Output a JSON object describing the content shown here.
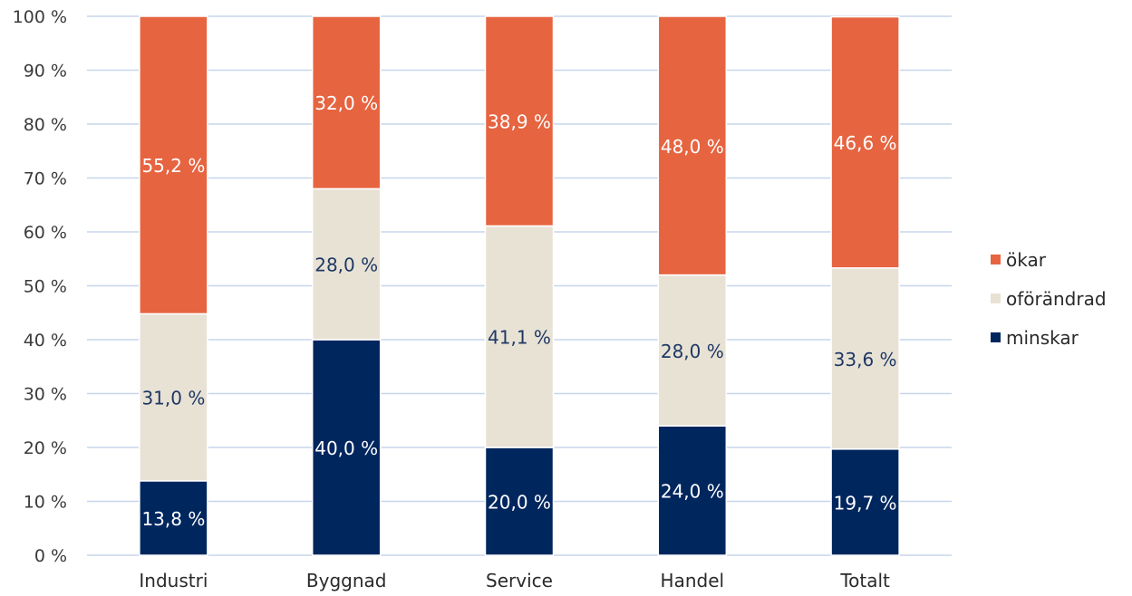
{
  "chart_data": {
    "type": "bar",
    "stacked": true,
    "categories": [
      "Industri",
      "Byggnad",
      "Service",
      "Handel",
      "Totalt"
    ],
    "series": [
      {
        "name": "minskar",
        "values": [
          13.8,
          40.0,
          20.0,
          24.0,
          19.7
        ],
        "labels": [
          "13,8 %",
          "40,0 %",
          "20,0 %",
          "24,0 %",
          "19,7 %"
        ],
        "color": "#00265e",
        "label_color": "#ffffff"
      },
      {
        "name": "oförändrad",
        "values": [
          31.0,
          28.0,
          41.1,
          28.0,
          33.6
        ],
        "labels": [
          "31,0 %",
          "28,0 %",
          "41,1 %",
          "28,0 %",
          "33,6 %"
        ],
        "color": "#e8e2d5",
        "label_color": "#1f3864"
      },
      {
        "name": "ökar",
        "values": [
          55.2,
          32.0,
          38.9,
          48.0,
          46.6
        ],
        "labels": [
          "55,2 %",
          "32,0 %",
          "38,9 %",
          "48,0 %",
          "46,6 %"
        ],
        "color": "#e66440",
        "label_color": "#ffffff"
      }
    ],
    "ylim": [
      0,
      100
    ],
    "yticks": [
      "0 %",
      "10 %",
      "20 %",
      "30 %",
      "40 %",
      "50 %",
      "60 %",
      "70 %",
      "80 %",
      "90 %",
      "100 %"
    ],
    "grid": true,
    "grid_color": "#c7d6ec",
    "legend": {
      "placement": "right",
      "order": [
        "ökar",
        "oförändrad",
        "minskar"
      ]
    },
    "title": "",
    "xlabel": "",
    "ylabel": ""
  }
}
